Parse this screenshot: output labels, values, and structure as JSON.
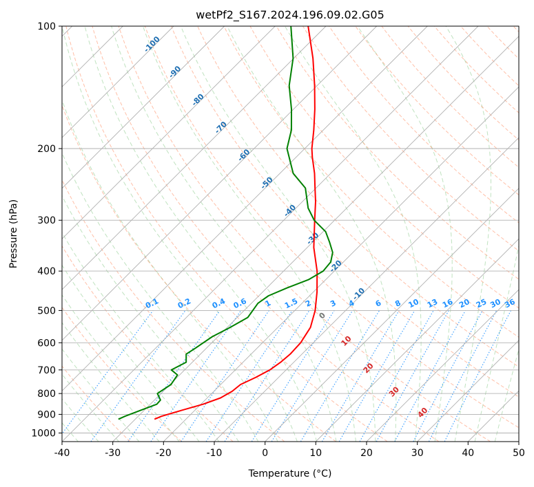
{
  "chart_data": {
    "type": "line",
    "title": "wetPf2_S167.2024.196.09.02.G05",
    "xlabel": "Temperature (°C)",
    "ylabel": "Pressure (hPa)",
    "xlim": [
      -40,
      50
    ],
    "ylim": [
      1050,
      100
    ],
    "y_scale": "log",
    "skew": true,
    "grid": true,
    "x_ticks": [
      "-40",
      "-30",
      "-20",
      "-10",
      "0",
      "10",
      "20",
      "30",
      "40",
      "50"
    ],
    "y_ticks": [
      "100",
      "200",
      "300",
      "400",
      "500",
      "600",
      "700",
      "800",
      "900",
      "1000"
    ],
    "series": [
      {
        "color": "#ff0000",
        "p": [
          925,
          910,
          880,
          850,
          820,
          790,
          760,
          730,
          700,
          670,
          640,
          600,
          550,
          500,
          450,
          400,
          350,
          300,
          270,
          250,
          230,
          210,
          200,
          180,
          160,
          140,
          120,
          100
        ],
        "t": [
          -26.2,
          -25.4,
          -22.6,
          -19.6,
          -17.4,
          -16.4,
          -16.1,
          -14.5,
          -13.2,
          -12.6,
          -12.3,
          -12.5,
          -13.6,
          -16.0,
          -19.3,
          -23.4,
          -28.7,
          -33.9,
          -37.4,
          -40.2,
          -43.2,
          -46.8,
          -48.6,
          -51.9,
          -55.8,
          -60.5,
          -66.2,
          -73.5
        ]
      },
      {
        "color": "#008000",
        "p": [
          925,
          910,
          880,
          850,
          830,
          800,
          760,
          720,
          700,
          670,
          640,
          620,
          580,
          550,
          520,
          500,
          480,
          460,
          440,
          420,
          400,
          380,
          360,
          340,
          320,
          300,
          280,
          250,
          230,
          200,
          180,
          160,
          140,
          120,
          100
        ],
        "t": [
          -33.3,
          -32.6,
          -30.7,
          -28.7,
          -28.8,
          -30.7,
          -29.8,
          -30.4,
          -32.6,
          -31.2,
          -32.8,
          -32.2,
          -31.1,
          -29.4,
          -27.9,
          -28.3,
          -28.7,
          -28.1,
          -26.0,
          -23.4,
          -22.2,
          -22.5,
          -24.0,
          -26.6,
          -29.5,
          -34.0,
          -37.6,
          -42.1,
          -47.4,
          -53.5,
          -56.3,
          -60.4,
          -65.5,
          -70.1,
          -76.9
        ]
      }
    ],
    "dry_adiabat_labels": [
      "-100",
      "-90",
      "-80",
      "-70",
      "-60",
      "-50",
      "-40",
      "-30",
      "-20",
      "-10"
    ],
    "mixing_ratio_labels": [
      "0.1",
      "0.2",
      "0.4",
      "0.6",
      "1",
      "1.5",
      "2",
      "3",
      "4",
      "6",
      "8",
      "10",
      "13",
      "16",
      "20",
      "25",
      "30",
      "36"
    ],
    "moist_adiabat_labels": [
      "0",
      "10",
      "20",
      "30",
      "40"
    ],
    "colors": {
      "temperature": "#ff0000",
      "dewpoint": "#008000",
      "isotherm": "#b0b0b0",
      "dry_adiabat": "#ff7f50",
      "moist_adiabat": "#2ca02c",
      "mixing_ratio": "#1e90ff",
      "dry_label": "#1f6fb2",
      "moist_label": "#d62728"
    }
  }
}
